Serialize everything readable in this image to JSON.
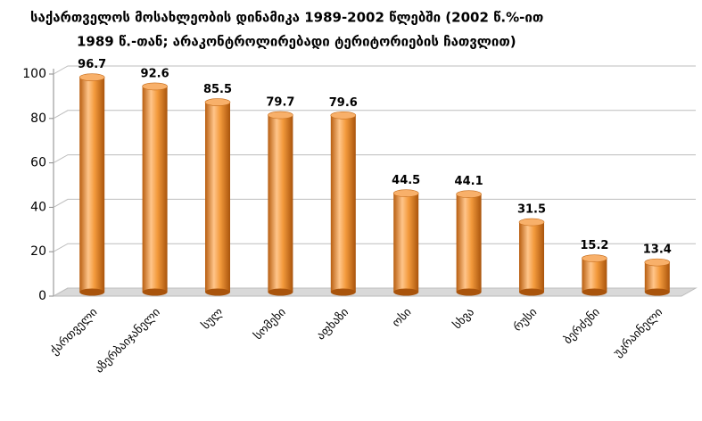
{
  "chart_data": {
    "type": "bar",
    "title": [
      "საქართველოს მოსახლეობის დინამიკა 1989-2002 წლებში  (2002 წ.%-ით",
      "1989 წ.-თან; არაკონტროლირებადი ტერიტორიების ჩათვლით)"
    ],
    "categories": [
      "ქართველი",
      "აზერბაიჯანელი",
      "სულ",
      "სომეხი",
      "აფხაზი",
      "ოსი",
      "სხვა",
      "რუსი",
      "ბერძენი",
      "უკრაინელი"
    ],
    "values": [
      96.7,
      92.6,
      85.5,
      79.7,
      79.6,
      44.5,
      44.1,
      31.5,
      15.2,
      13.4
    ],
    "color": "#f39a3c",
    "ylim": [
      0,
      100
    ],
    "yticks": [
      0,
      20,
      40,
      60,
      80,
      100
    ],
    "grid": true
  }
}
